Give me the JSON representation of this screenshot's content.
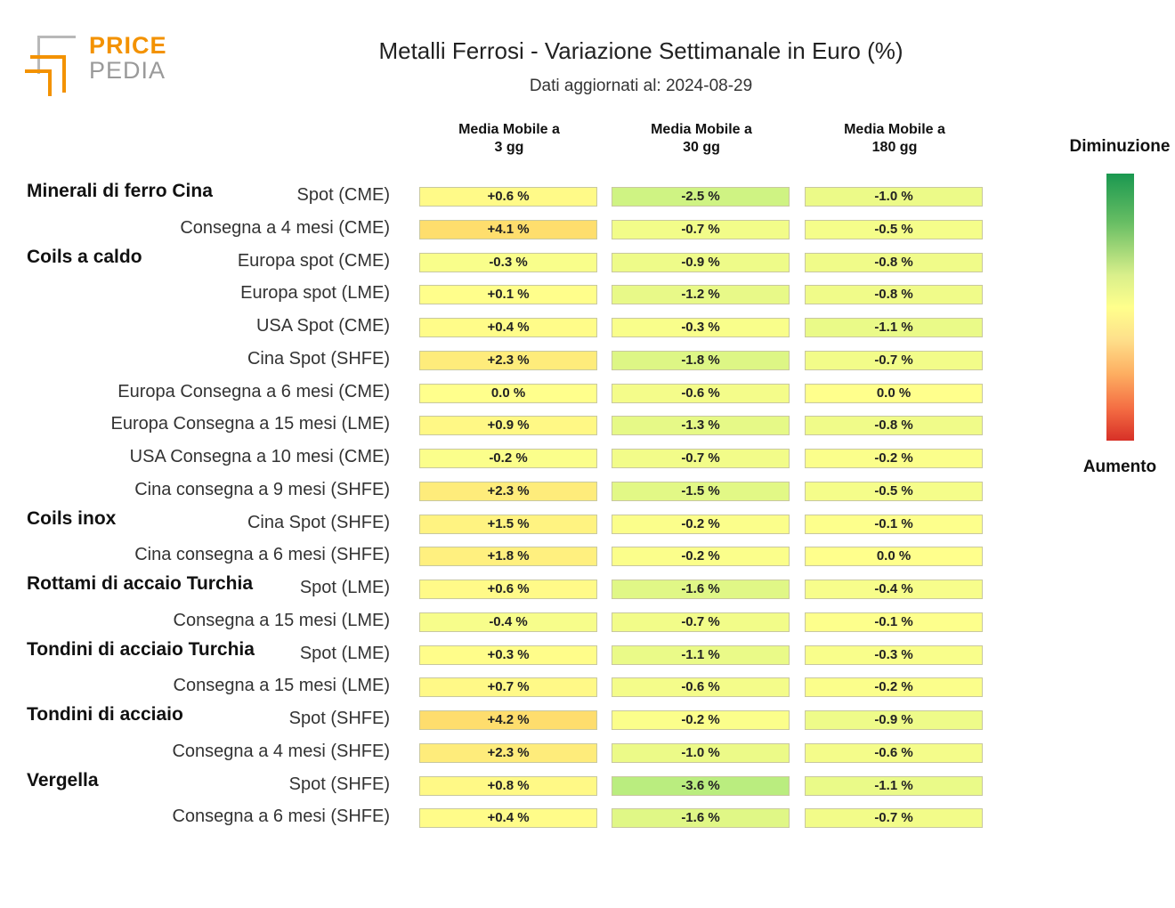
{
  "logo": {
    "price": "PRICE",
    "pedia": "PEDIA"
  },
  "title": "Metalli Ferrosi - Variazione Settimanale in Euro (%)",
  "subtitle": "Dati aggiornati al: 2024-08-29",
  "legend": {
    "top": "Diminuzione",
    "bottom": "Aumento"
  },
  "chart_data": {
    "type": "heatmap",
    "columns": [
      "Media Mobile a\n3 gg",
      "Media Mobile a\n30 gg",
      "Media Mobile a\n180 gg"
    ],
    "rows": [
      {
        "group": "Minerali di ferro Cina",
        "label": "Spot (CME)",
        "values": [
          0.6,
          -2.5,
          -1.0
        ],
        "text": [
          "+0.6 %",
          "-2.5 %",
          "-1.0 %"
        ]
      },
      {
        "group": "",
        "label": "Consegna a 4 mesi (CME)",
        "values": [
          4.1,
          -0.7,
          -0.5
        ],
        "text": [
          "+4.1 %",
          "-0.7 %",
          "-0.5 %"
        ]
      },
      {
        "group": "Coils a caldo",
        "label": "Europa spot (CME)",
        "values": [
          -0.3,
          -0.9,
          -0.8
        ],
        "text": [
          "-0.3 %",
          "-0.9 %",
          "-0.8 %"
        ]
      },
      {
        "group": "",
        "label": "Europa spot (LME)",
        "values": [
          0.1,
          -1.2,
          -0.8
        ],
        "text": [
          "+0.1 %",
          "-1.2 %",
          "-0.8 %"
        ]
      },
      {
        "group": "",
        "label": "USA Spot (CME)",
        "values": [
          0.4,
          -0.3,
          -1.1
        ],
        "text": [
          "+0.4 %",
          "-0.3 %",
          "-1.1 %"
        ]
      },
      {
        "group": "",
        "label": "Cina Spot (SHFE)",
        "values": [
          2.3,
          -1.8,
          -0.7
        ],
        "text": [
          "+2.3 %",
          "-1.8 %",
          "-0.7 %"
        ]
      },
      {
        "group": "",
        "label": "Europa Consegna a 6 mesi (CME)",
        "values": [
          0.0,
          -0.6,
          0.0
        ],
        "text": [
          "0.0 %",
          "-0.6 %",
          "0.0 %"
        ]
      },
      {
        "group": "",
        "label": "Europa Consegna a 15 mesi (LME)",
        "values": [
          0.9,
          -1.3,
          -0.8
        ],
        "text": [
          "+0.9 %",
          "-1.3 %",
          "-0.8 %"
        ]
      },
      {
        "group": "",
        "label": "USA Consegna a 10 mesi (CME)",
        "values": [
          -0.2,
          -0.7,
          -0.2
        ],
        "text": [
          "-0.2 %",
          "-0.7 %",
          "-0.2 %"
        ]
      },
      {
        "group": "",
        "label": "Cina consegna a 9 mesi (SHFE)",
        "values": [
          2.3,
          -1.5,
          -0.5
        ],
        "text": [
          "+2.3 %",
          "-1.5 %",
          "-0.5 %"
        ]
      },
      {
        "group": "Coils inox",
        "label": "Cina Spot (SHFE)",
        "values": [
          1.5,
          -0.2,
          -0.1
        ],
        "text": [
          "+1.5 %",
          "-0.2 %",
          "-0.1 %"
        ]
      },
      {
        "group": "",
        "label": "Cina consegna a 6 mesi (SHFE)",
        "values": [
          1.8,
          -0.2,
          0.0
        ],
        "text": [
          "+1.8 %",
          "-0.2 %",
          "0.0 %"
        ]
      },
      {
        "group": "Rottami di accaio Turchia",
        "label": "Spot (LME)",
        "values": [
          0.6,
          -1.6,
          -0.4
        ],
        "text": [
          "+0.6 %",
          "-1.6 %",
          "-0.4 %"
        ]
      },
      {
        "group": "",
        "label": "Consegna a 15 mesi (LME)",
        "values": [
          -0.4,
          -0.7,
          -0.1
        ],
        "text": [
          "-0.4 %",
          "-0.7 %",
          "-0.1 %"
        ]
      },
      {
        "group": "Tondini di acciaio Turchia",
        "label": "Spot (LME)",
        "values": [
          0.3,
          -1.1,
          -0.3
        ],
        "text": [
          "+0.3 %",
          "-1.1 %",
          "-0.3 %"
        ]
      },
      {
        "group": "",
        "label": "Consegna a 15 mesi (LME)",
        "values": [
          0.7,
          -0.6,
          -0.2
        ],
        "text": [
          "+0.7 %",
          "-0.6 %",
          "-0.2 %"
        ]
      },
      {
        "group": "Tondini di acciaio",
        "label": "Spot (SHFE)",
        "values": [
          4.2,
          -0.2,
          -0.9
        ],
        "text": [
          "+4.2 %",
          "-0.2 %",
          "-0.9 %"
        ]
      },
      {
        "group": "",
        "label": "Consegna a 4 mesi (SHFE)",
        "values": [
          2.3,
          -1.0,
          -0.6
        ],
        "text": [
          "+2.3 %",
          "-1.0 %",
          "-0.6 %"
        ]
      },
      {
        "group": "Vergella",
        "label": "Spot (SHFE)",
        "values": [
          0.8,
          -3.6,
          -1.1
        ],
        "text": [
          "+0.8 %",
          "-3.6 %",
          "-1.1 %"
        ]
      },
      {
        "group": "",
        "label": "Consegna a 6 mesi (SHFE)",
        "values": [
          0.4,
          -1.6,
          -0.7
        ],
        "text": [
          "+0.4 %",
          "-1.6 %",
          "-0.7 %"
        ]
      }
    ],
    "color_scale": {
      "min_color": "#d73027",
      "mid_color": "#ffff8c",
      "max_color": "#1a9850"
    }
  }
}
